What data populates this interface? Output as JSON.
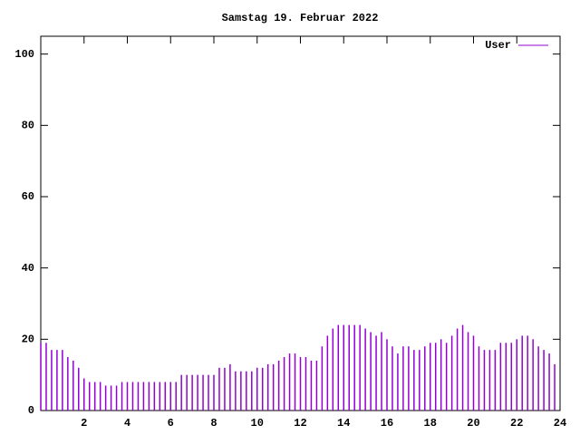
{
  "chart_data": {
    "type": "impulse",
    "title": "Samstag 19. Februar 2022",
    "x": [
      0,
      0.25,
      0.5,
      0.75,
      1,
      1.25,
      1.5,
      1.75,
      2,
      2.25,
      2.5,
      2.75,
      3,
      3.25,
      3.5,
      3.75,
      4,
      4.25,
      4.5,
      4.75,
      5,
      5.25,
      5.5,
      5.75,
      6,
      6.25,
      6.5,
      6.75,
      7,
      7.25,
      7.5,
      7.75,
      8,
      8.25,
      8.5,
      8.75,
      9,
      9.25,
      9.5,
      9.75,
      10,
      10.25,
      10.5,
      10.75,
      11,
      11.25,
      11.5,
      11.75,
      12,
      12.25,
      12.5,
      12.75,
      13,
      13.25,
      13.5,
      13.75,
      14,
      14.25,
      14.5,
      14.75,
      15,
      15.25,
      15.5,
      15.75,
      16,
      16.25,
      16.5,
      16.75,
      17,
      17.25,
      17.5,
      17.75,
      18,
      18.25,
      18.5,
      18.75,
      19,
      19.25,
      19.5,
      19.75,
      20,
      20.25,
      20.5,
      20.75,
      21,
      21.25,
      21.5,
      21.75,
      22,
      22.25,
      22.5,
      22.75,
      23,
      23.25,
      23.5,
      23.75
    ],
    "series": [
      {
        "name": "User",
        "color": "#9400d3",
        "values": [
          19,
          19,
          17,
          17,
          17,
          15,
          14,
          12,
          9,
          8,
          8,
          8,
          7,
          7,
          7,
          8,
          8,
          8,
          8,
          8,
          8,
          8,
          8,
          8,
          8,
          8,
          10,
          10,
          10,
          10,
          10,
          10,
          10,
          12,
          12,
          13,
          11,
          11,
          11,
          11,
          12,
          12,
          13,
          13,
          14,
          15,
          16,
          16,
          15,
          15,
          14,
          14,
          18,
          21,
          23,
          24,
          24,
          24,
          24,
          24,
          23,
          22,
          21,
          22,
          20,
          18,
          16,
          18,
          18,
          17,
          17,
          18,
          19,
          19,
          20,
          19,
          21,
          23,
          24,
          22,
          21,
          18,
          17,
          17,
          17,
          19,
          19,
          19,
          20,
          21,
          21,
          20,
          18,
          17,
          16,
          13
        ]
      }
    ],
    "xlim": [
      0,
      24
    ],
    "xticks": [
      2,
      4,
      6,
      8,
      10,
      12,
      14,
      16,
      18,
      20,
      22,
      24
    ],
    "ylim": [
      0,
      105
    ],
    "yticks": [
      0,
      20,
      40,
      60,
      80,
      100
    ],
    "legend": "top-right"
  }
}
